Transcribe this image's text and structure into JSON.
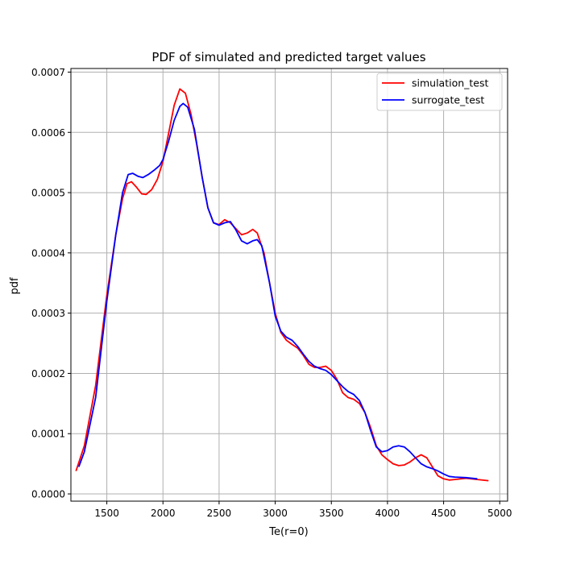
{
  "chart_data": {
    "type": "line",
    "title": "PDF of simulated and predicted target values",
    "xlabel": "Te(r=0)",
    "ylabel": "pdf",
    "xlim": [
      1180,
      5070
    ],
    "ylim": [
      -1.2e-05,
      0.000706
    ],
    "grid": true,
    "legend_position": "top-right",
    "xticks": [
      1500,
      2000,
      2500,
      3000,
      3500,
      4000,
      4500,
      5000
    ],
    "xtick_labels": [
      "1500",
      "2000",
      "2500",
      "3000",
      "3500",
      "4000",
      "4500",
      "5000"
    ],
    "yticks": [
      0,
      0.0001,
      0.0002,
      0.0003,
      0.0004,
      0.0005,
      0.0006,
      0.0007
    ],
    "ytick_labels": [
      "0.0000",
      "0.0001",
      "0.0002",
      "0.0003",
      "0.0004",
      "0.0005",
      "0.0006",
      "0.0007"
    ],
    "series": [
      {
        "name": "simulation_test",
        "color": "#ff0000",
        "points": [
          [
            1225,
            3.8e-05
          ],
          [
            1300,
            8e-05
          ],
          [
            1400,
            0.00018
          ],
          [
            1500,
            0.00033
          ],
          [
            1580,
            0.00043
          ],
          [
            1640,
            0.00049
          ],
          [
            1680,
            0.000515
          ],
          [
            1720,
            0.000518
          ],
          [
            1760,
            0.00051
          ],
          [
            1810,
            0.000498
          ],
          [
            1850,
            0.000497
          ],
          [
            1900,
            0.000505
          ],
          [
            1950,
            0.000522
          ],
          [
            2000,
            0.000552
          ],
          [
            2050,
            0.000598
          ],
          [
            2100,
            0.000645
          ],
          [
            2150,
            0.000672
          ],
          [
            2200,
            0.000665
          ],
          [
            2250,
            0.00063
          ],
          [
            2300,
            0.00058
          ],
          [
            2350,
            0.000525
          ],
          [
            2400,
            0.000475
          ],
          [
            2450,
            0.00045
          ],
          [
            2500,
            0.000447
          ],
          [
            2550,
            0.000455
          ],
          [
            2600,
            0.00045
          ],
          [
            2650,
            0.00044
          ],
          [
            2700,
            0.00043
          ],
          [
            2750,
            0.000433
          ],
          [
            2800,
            0.000439
          ],
          [
            2840,
            0.000433
          ],
          [
            2900,
            0.0004
          ],
          [
            2950,
            0.00035
          ],
          [
            3000,
            0.0003
          ],
          [
            3050,
            0.000268
          ],
          [
            3100,
            0.000255
          ],
          [
            3150,
            0.000248
          ],
          [
            3200,
            0.000242
          ],
          [
            3250,
            0.00023
          ],
          [
            3300,
            0.000215
          ],
          [
            3350,
            0.00021
          ],
          [
            3400,
            0.00021
          ],
          [
            3450,
            0.000212
          ],
          [
            3500,
            0.000205
          ],
          [
            3550,
            0.00019
          ],
          [
            3600,
            0.000168
          ],
          [
            3650,
            0.00016
          ],
          [
            3700,
            0.000157
          ],
          [
            3750,
            0.00015
          ],
          [
            3800,
            0.000135
          ],
          [
            3850,
            0.00011
          ],
          [
            3900,
            8e-05
          ],
          [
            3950,
            6.5e-05
          ],
          [
            4000,
            5.7e-05
          ],
          [
            4050,
            5e-05
          ],
          [
            4100,
            4.7e-05
          ],
          [
            4150,
            4.8e-05
          ],
          [
            4200,
            5.3e-05
          ],
          [
            4250,
            6e-05
          ],
          [
            4300,
            6.5e-05
          ],
          [
            4350,
            6e-05
          ],
          [
            4400,
            4.5e-05
          ],
          [
            4450,
            3e-05
          ],
          [
            4500,
            2.5e-05
          ],
          [
            4550,
            2.3e-05
          ],
          [
            4600,
            2.4e-05
          ],
          [
            4700,
            2.6e-05
          ],
          [
            4800,
            2.4e-05
          ],
          [
            4900,
            2.2e-05
          ]
        ]
      },
      {
        "name": "surrogate_test",
        "color": "#0000ff",
        "points": [
          [
            1250,
            4.5e-05
          ],
          [
            1300,
            7e-05
          ],
          [
            1400,
            0.00016
          ],
          [
            1500,
            0.00032
          ],
          [
            1580,
            0.00043
          ],
          [
            1640,
            0.0005
          ],
          [
            1690,
            0.00053
          ],
          [
            1730,
            0.000532
          ],
          [
            1780,
            0.000527
          ],
          [
            1820,
            0.000525
          ],
          [
            1870,
            0.00053
          ],
          [
            1920,
            0.000537
          ],
          [
            1970,
            0.000545
          ],
          [
            2000,
            0.000555
          ],
          [
            2050,
            0.000585
          ],
          [
            2100,
            0.00062
          ],
          [
            2150,
            0.000643
          ],
          [
            2180,
            0.000648
          ],
          [
            2220,
            0.000642
          ],
          [
            2280,
            0.000605
          ],
          [
            2350,
            0.000525
          ],
          [
            2400,
            0.000475
          ],
          [
            2450,
            0.00045
          ],
          [
            2500,
            0.000446
          ],
          [
            2550,
            0.00045
          ],
          [
            2600,
            0.000452
          ],
          [
            2650,
            0.000438
          ],
          [
            2700,
            0.00042
          ],
          [
            2750,
            0.000415
          ],
          [
            2800,
            0.00042
          ],
          [
            2840,
            0.000422
          ],
          [
            2880,
            0.000412
          ],
          [
            2950,
            0.00035
          ],
          [
            3000,
            0.000295
          ],
          [
            3050,
            0.00027
          ],
          [
            3100,
            0.00026
          ],
          [
            3150,
            0.000255
          ],
          [
            3200,
            0.000245
          ],
          [
            3250,
            0.000232
          ],
          [
            3300,
            0.00022
          ],
          [
            3350,
            0.000212
          ],
          [
            3400,
            0.000208
          ],
          [
            3450,
            0.000205
          ],
          [
            3500,
            0.000198
          ],
          [
            3550,
            0.000188
          ],
          [
            3600,
            0.000178
          ],
          [
            3650,
            0.00017
          ],
          [
            3700,
            0.000165
          ],
          [
            3750,
            0.000155
          ],
          [
            3800,
            0.000135
          ],
          [
            3850,
            0.000105
          ],
          [
            3900,
            7.8e-05
          ],
          [
            3950,
            7e-05
          ],
          [
            4000,
            7.2e-05
          ],
          [
            4050,
            7.8e-05
          ],
          [
            4100,
            8e-05
          ],
          [
            4150,
            7.8e-05
          ],
          [
            4200,
            7e-05
          ],
          [
            4250,
            6e-05
          ],
          [
            4300,
            5e-05
          ],
          [
            4350,
            4.5e-05
          ],
          [
            4400,
            4.2e-05
          ],
          [
            4450,
            3.8e-05
          ],
          [
            4500,
            3.3e-05
          ],
          [
            4550,
            2.9e-05
          ],
          [
            4600,
            2.8e-05
          ],
          [
            4700,
            2.7e-05
          ],
          [
            4800,
            2.5e-05
          ]
        ]
      }
    ]
  }
}
